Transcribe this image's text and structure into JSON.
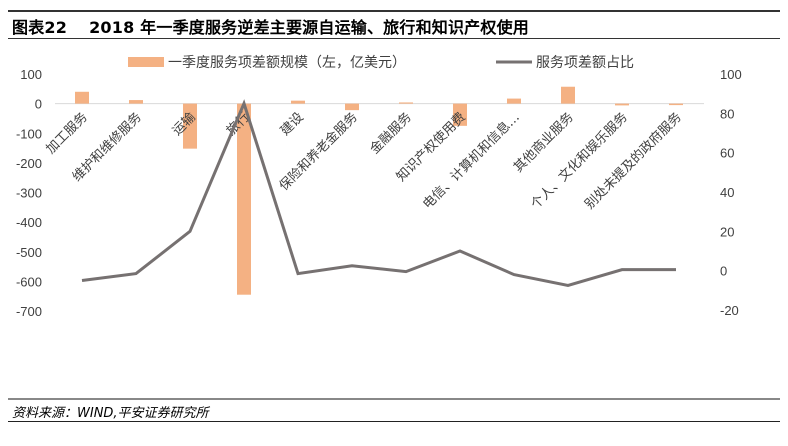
{
  "figure": {
    "number": "图表22",
    "title": "2018 年一季度服务逆差主要源自运输、旅行和知识产权使用",
    "source": "资料来源：WIND,平安证券研究所"
  },
  "colors": {
    "bar": "#F4B183",
    "line": "#767171",
    "zero_line": "#D9D9D9",
    "axis_text": "#404040"
  },
  "chart_data": {
    "type": "bar+line",
    "title": "2018 年一季度服务逆差主要源自运输、旅行和知识产权使用",
    "categories": [
      "加工服务",
      "维护和维修服务",
      "运输",
      "旅行",
      "建设",
      "保险和养老金服务",
      "金融服务",
      "知识产权使用费",
      "电信、计算机和信息…",
      "其他商业服务",
      "个人、文化和娱乐服务",
      "别处未提及的政府服务"
    ],
    "series": [
      {
        "name": "一季度服务项差额规模（左，亿美元）",
        "type": "bar",
        "axis": "left",
        "values": [
          40,
          12,
          -152,
          -645,
          10,
          -22,
          4,
          -75,
          17,
          57,
          -6,
          -5
        ]
      },
      {
        "name": "服务项差额占比",
        "type": "line",
        "axis": "right",
        "values": [
          -5,
          -1.5,
          20,
          85,
          -1.5,
          2.5,
          -0.5,
          10,
          -2,
          -7.5,
          0.5,
          0.5
        ]
      }
    ],
    "y_left": {
      "ticks": [
        "100",
        "0",
        "-100",
        "-200",
        "-300",
        "-400",
        "-500",
        "-600",
        "-700"
      ],
      "range": [
        -700,
        100
      ]
    },
    "y_right": {
      "ticks": [
        "100",
        "80",
        "60",
        "40",
        "20",
        "0",
        "-20"
      ],
      "range": [
        -20,
        100
      ]
    },
    "legend_position": "top",
    "grid": false
  }
}
